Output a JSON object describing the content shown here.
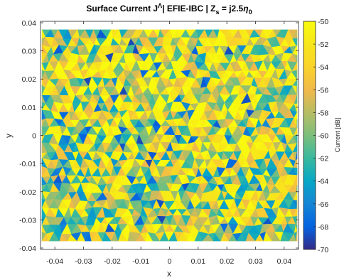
{
  "chart_data": {
    "type": "heatmap",
    "title": {
      "main": "Surface Current J",
      "sup": "Λ",
      "mid": "| EFIE-IBC | Z",
      "sub": "s",
      "tail": " = j2.5",
      "symbol": "η",
      "symbol_sub": "0"
    },
    "xlabel": "x",
    "ylabel": "y",
    "xlim": [
      -0.045,
      0.045
    ],
    "ylim": [
      -0.0405,
      0.0405
    ],
    "xticks": [
      -0.04,
      -0.03,
      -0.02,
      -0.01,
      0,
      0.01,
      0.02,
      0.03,
      0.04
    ],
    "xtick_labels": [
      "-0.04",
      "-0.03",
      "-0.02",
      "-0.01",
      "0",
      "0.01",
      "0.02",
      "0.03",
      "0.04"
    ],
    "yticks": [
      -0.04,
      -0.03,
      -0.02,
      -0.01,
      0,
      0.01,
      0.02,
      0.03,
      0.04
    ],
    "ytick_labels": [
      "-0.04",
      "-0.03",
      "-0.02",
      "-0.01",
      "0",
      "0.01",
      "0.02",
      "0.03",
      "0.04"
    ],
    "mesh_extent_x": [
      -0.0445,
      0.0445
    ],
    "mesh_extent_y": [
      -0.0375,
      0.0375
    ],
    "colorbar": {
      "label": "Current [dB]",
      "limits": [
        -70,
        -50
      ],
      "ticks": [
        -50,
        -52,
        -54,
        -56,
        -58,
        -60,
        -62,
        -64,
        -66,
        -68,
        -70
      ],
      "tick_labels": [
        "-50",
        "-52",
        "-54",
        "-56",
        "-58",
        "-60",
        "-62",
        "-64",
        "-66",
        "-68",
        "-70"
      ],
      "colormap": "parula"
    },
    "grid": false
  }
}
